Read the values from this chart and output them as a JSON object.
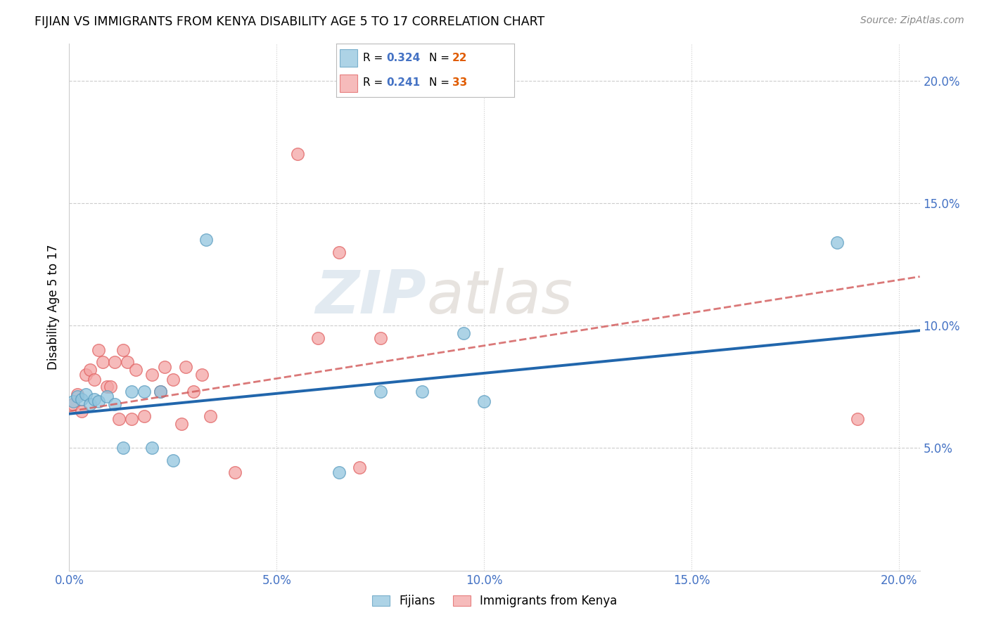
{
  "title": "FIJIAN VS IMMIGRANTS FROM KENYA DISABILITY AGE 5 TO 17 CORRELATION CHART",
  "source": "Source: ZipAtlas.com",
  "ylabel": "Disability Age 5 to 17",
  "xlim": [
    0.0,
    0.205
  ],
  "ylim": [
    0.0,
    0.215
  ],
  "xtick_labels": [
    "0.0%",
    "5.0%",
    "10.0%",
    "15.0%",
    "20.0%"
  ],
  "xtick_vals": [
    0.0,
    0.05,
    0.1,
    0.15,
    0.2
  ],
  "ytick_labels": [
    "5.0%",
    "10.0%",
    "15.0%",
    "20.0%"
  ],
  "ytick_vals": [
    0.05,
    0.1,
    0.15,
    0.2
  ],
  "fijian_color": "#92c5de",
  "fijian_edge_color": "#5b9dc0",
  "kenya_color": "#f4a4a4",
  "kenya_edge_color": "#e06060",
  "fijian_line_color": "#2166ac",
  "kenya_line_color": "#d46060",
  "fijian_R": "0.324",
  "fijian_N": "22",
  "kenya_R": "0.241",
  "kenya_N": "33",
  "legend_R_color": "#4472c4",
  "legend_N_color": "#e05c00",
  "watermark_zip": "ZIP",
  "watermark_atlas": "atlas",
  "fijian_x": [
    0.001,
    0.002,
    0.003,
    0.004,
    0.005,
    0.006,
    0.007,
    0.009,
    0.011,
    0.013,
    0.015,
    0.018,
    0.02,
    0.022,
    0.025,
    0.033,
    0.065,
    0.075,
    0.085,
    0.095,
    0.1,
    0.185
  ],
  "fijian_y": [
    0.069,
    0.071,
    0.07,
    0.072,
    0.068,
    0.07,
    0.069,
    0.071,
    0.068,
    0.05,
    0.073,
    0.073,
    0.05,
    0.073,
    0.045,
    0.135,
    0.04,
    0.073,
    0.073,
    0.097,
    0.069,
    0.134
  ],
  "kenya_x": [
    0.001,
    0.002,
    0.003,
    0.004,
    0.005,
    0.006,
    0.007,
    0.008,
    0.009,
    0.01,
    0.011,
    0.012,
    0.013,
    0.014,
    0.015,
    0.016,
    0.018,
    0.02,
    0.022,
    0.023,
    0.025,
    0.027,
    0.028,
    0.03,
    0.032,
    0.034,
    0.04,
    0.055,
    0.06,
    0.065,
    0.07,
    0.075,
    0.19
  ],
  "kenya_y": [
    0.068,
    0.072,
    0.065,
    0.08,
    0.082,
    0.078,
    0.09,
    0.085,
    0.075,
    0.075,
    0.085,
    0.062,
    0.09,
    0.085,
    0.062,
    0.082,
    0.063,
    0.08,
    0.073,
    0.083,
    0.078,
    0.06,
    0.083,
    0.073,
    0.08,
    0.063,
    0.04,
    0.17,
    0.095,
    0.13,
    0.042,
    0.095,
    0.062
  ]
}
